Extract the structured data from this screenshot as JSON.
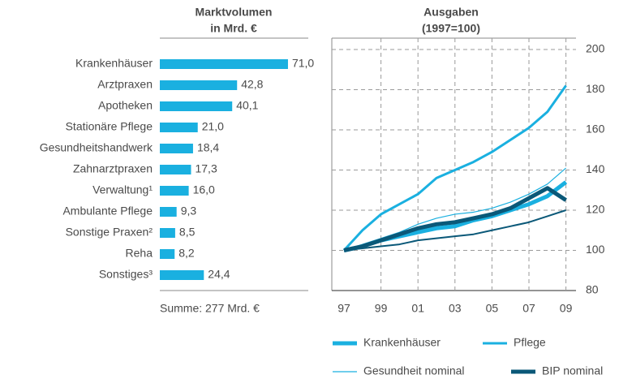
{
  "chart_data": [
    {
      "type": "hbar",
      "title": [
        "Marktvolumen",
        "in Mrd. €"
      ],
      "categories": [
        "Krankenhäuser",
        "Arztpraxen",
        "Apotheken",
        "Stationäre Pflege",
        "Gesundheitshandwerk",
        "Zahnarztpraxen",
        "Verwaltung¹",
        "Ambulante Pflege",
        "Sonstige Praxen²",
        "Reha",
        "Sonstiges³"
      ],
      "values": [
        71.0,
        42.8,
        40.1,
        21.0,
        18.4,
        17.3,
        16.0,
        9.3,
        8.5,
        8.2,
        24.4
      ],
      "value_labels": [
        "71,0",
        "42,8",
        "40,1",
        "21,0",
        "18,4",
        "17,3",
        "16,0",
        "9,3",
        "8,5",
        "8,2",
        "24,4"
      ],
      "color": "#1ab0e0",
      "xlim": [
        0,
        80
      ],
      "annotation": "Summe: 277 Mrd. €"
    },
    {
      "type": "line",
      "title": [
        "Ausgaben",
        "(1997=100)"
      ],
      "categories": [
        "97",
        null,
        "99",
        null,
        "01",
        null,
        "03",
        null,
        "05",
        null,
        "07",
        null,
        "09"
      ],
      "ylim": [
        80,
        200
      ],
      "yticks": [
        80,
        100,
        120,
        140,
        160,
        180,
        200
      ],
      "grid": true,
      "series": [
        {
          "name": "Krankenhäuser",
          "color": "#1ab0e0",
          "values": [
            100,
            102,
            105,
            107,
            109,
            111,
            112,
            115,
            117,
            120,
            123,
            127,
            134
          ]
        },
        {
          "name": "Pflege",
          "color": "#1ab0e0",
          "values": [
            100,
            110,
            118,
            123,
            128,
            136,
            140,
            144,
            149,
            155,
            161,
            169,
            182
          ]
        },
        {
          "name": "Gesundheit nominal",
          "color": "#1ab0e0",
          "values": [
            100,
            103,
            106,
            109,
            113,
            116,
            118,
            119,
            121,
            124,
            128,
            133,
            141
          ]
        },
        {
          "name": "BIP nominal",
          "color": "#0a5878",
          "values": [
            100,
            102,
            105,
            108,
            111,
            113,
            114,
            116,
            118,
            121,
            126,
            131,
            125
          ]
        },
        {
          "color": "#0a5878",
          "values": [
            100,
            101,
            102,
            103,
            105,
            106,
            107,
            108,
            110,
            112,
            114,
            117,
            120
          ]
        }
      ]
    }
  ]
}
